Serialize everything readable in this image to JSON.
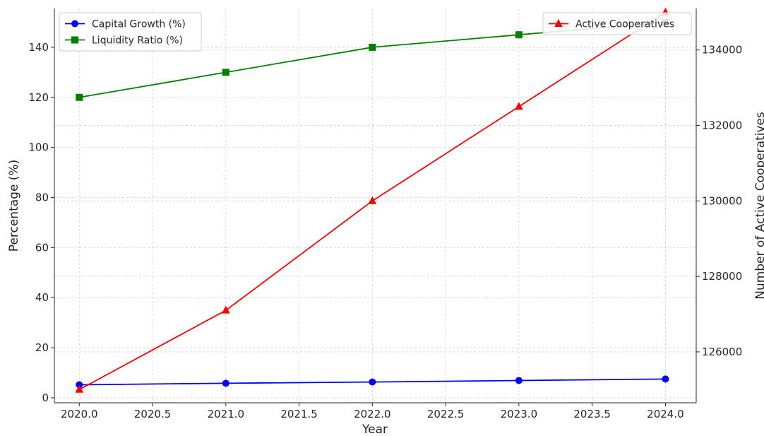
{
  "chart_data": {
    "type": "line",
    "x": [
      2020,
      2021,
      2022,
      2023,
      2024
    ],
    "xlabel": "Year",
    "xlim": [
      2019.83,
      2024.21
    ],
    "x_ticks": [
      "2020.0",
      "2020.5",
      "2021.0",
      "2021.5",
      "2022.0",
      "2022.5",
      "2023.0",
      "2023.5",
      "2024.0"
    ],
    "x_tick_values": [
      2020.0,
      2020.5,
      2021.0,
      2021.5,
      2022.0,
      2022.5,
      2023.0,
      2023.5,
      2024.0
    ],
    "grid": true,
    "left_axis": {
      "ylabel": "Percentage (%)",
      "ylim": [
        -2,
        155.5
      ],
      "ticks": [
        "0",
        "20",
        "40",
        "60",
        "80",
        "100",
        "120",
        "140"
      ],
      "tick_values": [
        0,
        20,
        40,
        60,
        80,
        100,
        120,
        140
      ],
      "legend_position": "top-left",
      "series": [
        {
          "name": "Capital Growth (%)",
          "values": [
            5.2,
            5.8,
            6.3,
            6.9,
            7.5
          ],
          "color": "#0000ff",
          "marker": "circle"
        },
        {
          "name": "Liquidity Ratio (%)",
          "values": [
            120,
            130,
            140,
            145,
            150
          ],
          "color": "#008000",
          "marker": "square"
        }
      ]
    },
    "right_axis": {
      "ylabel": "Number of Active Cooperatives",
      "ylim": [
        124650,
        135100
      ],
      "ticks": [
        "126000",
        "128000",
        "130000",
        "132000",
        "134000"
      ],
      "tick_values": [
        126000,
        128000,
        130000,
        132000,
        134000
      ],
      "legend_position": "top-right",
      "series": [
        {
          "name": "Active Cooperatives",
          "values": [
            125000,
            127100,
            130000,
            132500,
            135000
          ],
          "color": "#ff0000",
          "marker": "triangle"
        }
      ]
    }
  }
}
